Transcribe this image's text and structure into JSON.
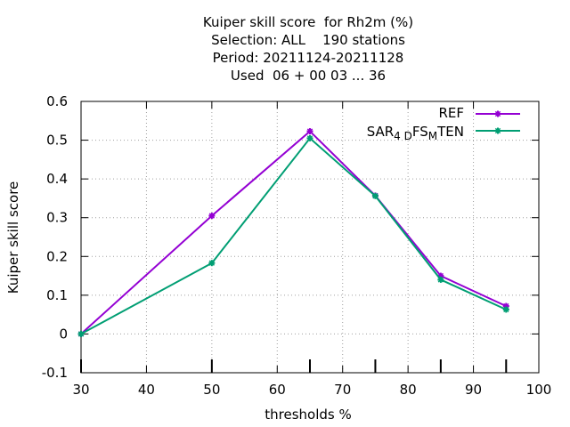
{
  "chart_data": {
    "type": "line",
    "title_lines": [
      "Kuiper skill score  for Rh2m (%)",
      "Selection: ALL    190 stations",
      "Period: 20211124-20211128",
      "Used  06 + 00 03 ... 36"
    ],
    "xlabel": "thresholds %",
    "ylabel": "Kuiper skill score",
    "xlim": [
      30,
      100
    ],
    "ylim": [
      -0.1,
      0.6
    ],
    "xticks": [
      "30",
      "40",
      "50",
      "60",
      "70",
      "80",
      "90",
      "100"
    ],
    "yticks": [
      "-0.1",
      "0",
      "0.1",
      "0.2",
      "0.3",
      "0.4",
      "0.5",
      "0.6"
    ],
    "legend_position": "top-right",
    "grid": true,
    "series": [
      {
        "name": "REF",
        "color": "#9400d3",
        "x": [
          30,
          50,
          65,
          75,
          85,
          95
        ],
        "y": [
          0.0,
          0.305,
          0.523,
          0.357,
          0.15,
          0.072
        ]
      },
      {
        "name_parts": [
          "SAR",
          "4 D",
          "FS",
          "M",
          "TEN"
        ],
        "color": "#009e73",
        "x": [
          30,
          50,
          65,
          75,
          85,
          95
        ],
        "y": [
          0.0,
          0.183,
          0.505,
          0.356,
          0.14,
          0.063
        ]
      }
    ]
  }
}
